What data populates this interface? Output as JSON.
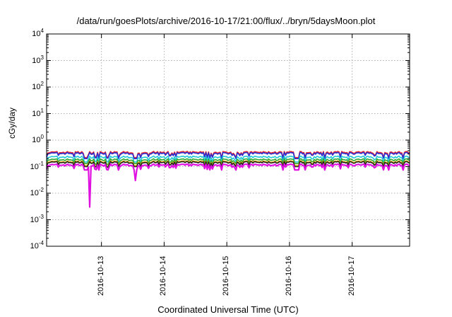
{
  "chart_data": {
    "type": "line",
    "title": "/data/run/goesPlots/archive/2016-10-17/21:00/flux/../bryn/5daysMoon.plot",
    "xlabel": "Coordinated Universal Time (UTC)",
    "ylabel": "cGy/day",
    "yscale": "log",
    "ylim": [
      0.0001,
      10000
    ],
    "xlim": [
      "2016-10-12 03:00",
      "2016-10-17 22:00"
    ],
    "yticks": [
      {
        "base": "10",
        "exp": "-4",
        "value": 0.0001
      },
      {
        "base": "10",
        "exp": "-3",
        "value": 0.001
      },
      {
        "base": "10",
        "exp": "-2",
        "value": 0.01
      },
      {
        "base": "10",
        "exp": "-1",
        "value": 0.1
      },
      {
        "base": "10",
        "exp": "0",
        "value": 1
      },
      {
        "base": "10",
        "exp": "1",
        "value": 10
      },
      {
        "base": "10",
        "exp": "2",
        "value": 100
      },
      {
        "base": "10",
        "exp": "3",
        "value": 1000
      },
      {
        "base": "10",
        "exp": "4",
        "value": 10000
      }
    ],
    "xticks": [
      "2016-10-13",
      "2016-10-14",
      "2016-10-15",
      "2016-10-16",
      "2016-10-17"
    ],
    "grid": true,
    "legend": "none",
    "series": [
      {
        "color": "#e8262d",
        "base": 0.36,
        "dip": 0.22,
        "dips": [
          "2016-10-12 18:00",
          "2016-10-13 13:00",
          "2016-10-16 03:00"
        ]
      },
      {
        "color": "#2a2fd4",
        "base": 0.33,
        "dip": 0.2,
        "dips": [
          "2016-10-12 18:00",
          "2016-10-13 13:00",
          "2016-10-16 03:00"
        ]
      },
      {
        "color": "#20c8d8",
        "base": 0.24,
        "dip": 0.15,
        "dips": [
          "2016-10-12 18:00",
          "2016-10-13 13:00",
          "2016-10-16 03:00"
        ]
      },
      {
        "color": "#2ea82e",
        "base": 0.19,
        "dip": 0.13,
        "dips": [
          "2016-10-12 18:00",
          "2016-10-13 13:00",
          "2016-10-16 03:00"
        ]
      },
      {
        "color": "#e0a800",
        "base": 0.16,
        "dip": 0.11,
        "dips": [
          "2016-10-12 18:00",
          "2016-10-13 13:00",
          "2016-10-16 03:00"
        ]
      },
      {
        "color": "#222222",
        "base": 0.15,
        "dip": 0.1,
        "dips": [
          "2016-10-12 18:00",
          "2016-10-13 13:00",
          "2016-10-16 03:00"
        ]
      },
      {
        "color": "#e010e0",
        "base": 0.12,
        "dip": 0.075,
        "dips": [
          "2016-10-12 18:00",
          "2016-10-13 13:00",
          "2016-10-16 03:00"
        ],
        "spikes": [
          {
            "x": "2016-10-12 19:30",
            "y": 0.003
          },
          {
            "x": "2016-10-13 13:00",
            "y": 0.03
          }
        ]
      }
    ]
  }
}
